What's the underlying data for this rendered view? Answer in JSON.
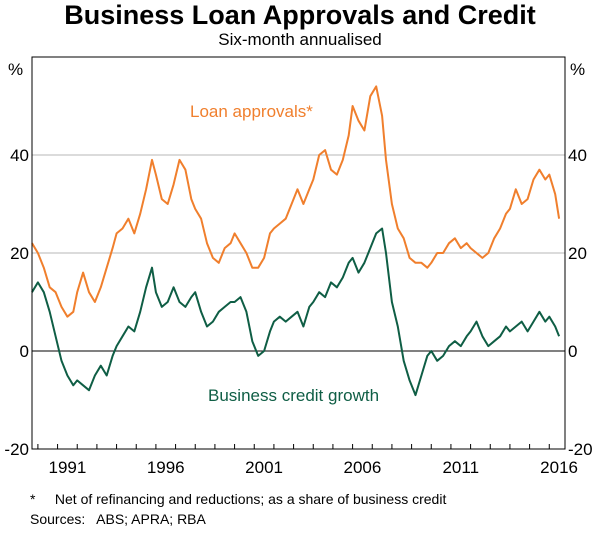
{
  "title": "Business Loan Approvals and Credit",
  "subtitle": "Six-month annualised",
  "footnote": "*     Net of refinancing and reductions; as a share of business credit",
  "sources": "Sources:   ABS; APRA; RBA",
  "colors": {
    "loan_approvals": "#f07f2d",
    "credit_growth": "#0f5e45",
    "grid": "#b7b7b7",
    "zero_line": "#000000"
  },
  "chart_data": {
    "type": "line",
    "ylabel_left": "%",
    "ylabel_right": "%",
    "ylim": [
      -20,
      60
    ],
    "xlim": [
      1989.7,
      2016.8
    ],
    "yticks": [
      -20,
      0,
      20,
      40
    ],
    "xticks": [
      1991,
      1996,
      2001,
      2006,
      2011,
      2016
    ],
    "grid": true,
    "series": [
      {
        "name": "Loan approvals*",
        "color": "#f07f2d",
        "x": [
          1989.7,
          1990.0,
          1990.3,
          1990.6,
          1990.9,
          1991.2,
          1991.5,
          1991.8,
          1992.0,
          1992.3,
          1992.6,
          1992.9,
          1993.2,
          1993.5,
          1993.8,
          1994.0,
          1994.3,
          1994.6,
          1994.9,
          1995.2,
          1995.5,
          1995.8,
          1996.0,
          1996.3,
          1996.6,
          1996.9,
          1997.2,
          1997.5,
          1997.8,
          1998.0,
          1998.3,
          1998.6,
          1998.9,
          1999.2,
          1999.5,
          1999.8,
          2000.0,
          2000.3,
          2000.6,
          2000.9,
          2001.2,
          2001.5,
          2001.8,
          2002.0,
          2002.3,
          2002.6,
          2002.9,
          2003.2,
          2003.5,
          2003.8,
          2004.0,
          2004.3,
          2004.6,
          2004.9,
          2005.2,
          2005.5,
          2005.8,
          2006.0,
          2006.3,
          2006.6,
          2006.9,
          2007.2,
          2007.5,
          2007.7,
          2008.0,
          2008.3,
          2008.6,
          2008.9,
          2009.2,
          2009.5,
          2009.8,
          2010.0,
          2010.3,
          2010.6,
          2010.9,
          2011.2,
          2011.5,
          2011.8,
          2012.0,
          2012.3,
          2012.6,
          2012.9,
          2013.2,
          2013.5,
          2013.8,
          2014.0,
          2014.3,
          2014.6,
          2014.9,
          2015.2,
          2015.5,
          2015.8,
          2016.0,
          2016.3,
          2016.5
        ],
        "values": [
          22,
          20,
          17,
          13,
          12,
          9,
          7,
          8,
          12,
          16,
          12,
          10,
          13,
          17,
          21,
          24,
          25,
          27,
          24,
          28,
          33,
          39,
          36,
          31,
          30,
          34,
          39,
          37,
          31,
          29,
          27,
          22,
          19,
          18,
          21,
          22,
          24,
          22,
          20,
          17,
          17,
          19,
          24,
          25,
          26,
          27,
          30,
          33,
          30,
          33,
          35,
          40,
          41,
          37,
          36,
          39,
          44,
          50,
          47,
          45,
          52,
          54,
          48,
          39,
          30,
          25,
          23,
          19,
          18,
          18,
          17,
          18,
          20,
          20,
          22,
          23,
          21,
          22,
          21,
          20,
          19,
          20,
          23,
          25,
          28,
          29,
          33,
          30,
          31,
          35,
          37,
          35,
          36,
          32,
          27
        ]
      },
      {
        "name": "Business credit growth",
        "color": "#0f5e45",
        "x": [
          1989.7,
          1990.0,
          1990.3,
          1990.6,
          1990.9,
          1991.2,
          1991.5,
          1991.8,
          1992.0,
          1992.3,
          1992.6,
          1992.9,
          1993.2,
          1993.5,
          1993.8,
          1994.0,
          1994.3,
          1994.6,
          1994.9,
          1995.2,
          1995.5,
          1995.8,
          1996.0,
          1996.3,
          1996.6,
          1996.9,
          1997.2,
          1997.5,
          1997.8,
          1998.0,
          1998.3,
          1998.6,
          1998.9,
          1999.2,
          1999.5,
          1999.8,
          2000.0,
          2000.3,
          2000.6,
          2000.9,
          2001.2,
          2001.5,
          2001.8,
          2002.0,
          2002.3,
          2002.6,
          2002.9,
          2003.2,
          2003.5,
          2003.8,
          2004.0,
          2004.3,
          2004.6,
          2004.9,
          2005.2,
          2005.5,
          2005.8,
          2006.0,
          2006.3,
          2006.6,
          2006.9,
          2007.2,
          2007.5,
          2007.7,
          2008.0,
          2008.3,
          2008.6,
          2008.9,
          2009.2,
          2009.5,
          2009.8,
          2010.0,
          2010.3,
          2010.6,
          2010.9,
          2011.2,
          2011.5,
          2011.8,
          2012.0,
          2012.3,
          2012.6,
          2012.9,
          2013.2,
          2013.5,
          2013.8,
          2014.0,
          2014.3,
          2014.6,
          2014.9,
          2015.2,
          2015.5,
          2015.8,
          2016.0,
          2016.3,
          2016.5
        ],
        "values": [
          12,
          14,
          12,
          8,
          3,
          -2,
          -5,
          -7,
          -6,
          -7,
          -8,
          -5,
          -3,
          -5,
          -1,
          1,
          3,
          5,
          4,
          8,
          13,
          17,
          12,
          9,
          10,
          13,
          10,
          9,
          11,
          12,
          8,
          5,
          6,
          8,
          9,
          10,
          10,
          11,
          8,
          2,
          -1,
          0,
          4,
          6,
          7,
          6,
          7,
          8,
          5,
          9,
          10,
          12,
          11,
          14,
          13,
          15,
          18,
          19,
          16,
          18,
          21,
          24,
          25,
          20,
          10,
          5,
          -2,
          -6,
          -9,
          -5,
          -1,
          0,
          -2,
          -1,
          1,
          2,
          1,
          3,
          4,
          6,
          3,
          1,
          2,
          3,
          5,
          4,
          5,
          6,
          4,
          6,
          8,
          6,
          7,
          5,
          3
        ]
      }
    ],
    "annotations": [
      {
        "text": "Loan approvals*",
        "series": "Loan approvals*"
      },
      {
        "text": "Business credit growth",
        "series": "Business credit growth"
      }
    ]
  }
}
